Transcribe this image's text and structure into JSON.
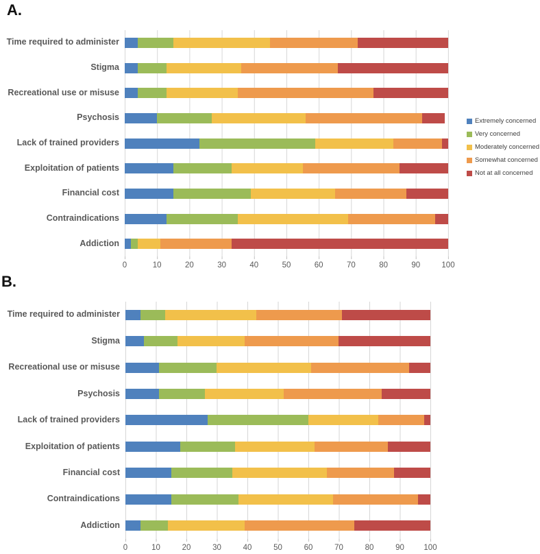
{
  "panels": [
    {
      "label": "A."
    },
    {
      "label": "B."
    }
  ],
  "palette": {
    "blue": "#4F81BD",
    "green": "#9BBB59",
    "yellow": "#F2C04A",
    "orange": "#EE9A4D",
    "dark_red": "#BE4B48"
  },
  "grid_color": "#d6d6d6",
  "axis_text_color": "#595959",
  "legend": {
    "position": "right-of-panel-A",
    "items": [
      {
        "label": "Extremely concerned",
        "color": "#4F81BD"
      },
      {
        "label": "Very concerned",
        "color": "#9BBB59"
      },
      {
        "label": "Moderately concerned",
        "color": "#F2C04A"
      },
      {
        "label": "Somewhat concerned",
        "color": "#EE9A4D"
      },
      {
        "label": "Not at all concerned",
        "color": "#BE4B48"
      }
    ]
  },
  "chart_data": [
    {
      "id": "A",
      "type": "bar",
      "subtype": "horizontal-stacked",
      "title": "",
      "xlabel": "",
      "ylabel": "",
      "xlim": [
        0,
        100
      ],
      "xticks": [
        0,
        10,
        20,
        30,
        40,
        50,
        60,
        70,
        80,
        90,
        100
      ],
      "grid": true,
      "legend_position": "right",
      "categories": [
        "Time required to administer",
        "Stigma",
        "Recreational use or misuse",
        "Psychosis",
        "Lack of trained providers",
        "Exploitation of patients",
        "Financial cost",
        "Contraindications",
        "Addiction"
      ],
      "series": [
        {
          "name": "Extremely concerned",
          "color": "#4F81BD",
          "values": [
            4,
            4,
            4,
            10,
            23,
            15,
            15,
            13,
            2
          ]
        },
        {
          "name": "Very concerned",
          "color": "#9BBB59",
          "values": [
            11,
            9,
            9,
            17,
            36,
            18,
            24,
            22,
            2
          ]
        },
        {
          "name": "Moderately concerned",
          "color": "#F2C04A",
          "values": [
            30,
            23,
            22,
            29,
            24,
            22,
            26,
            34,
            7
          ]
        },
        {
          "name": "Somewhat concerned",
          "color": "#EE9A4D",
          "values": [
            27,
            30,
            42,
            36,
            15,
            30,
            22,
            27,
            22
          ]
        },
        {
          "name": "Not at all concerned",
          "color": "#BE4B48",
          "values": [
            28,
            34,
            23,
            7,
            2,
            15,
            13,
            4,
            67
          ]
        }
      ]
    },
    {
      "id": "B",
      "type": "bar",
      "subtype": "horizontal-stacked",
      "title": "",
      "xlabel": "",
      "ylabel": "",
      "xlim": [
        0,
        100
      ],
      "xticks": [
        0,
        10,
        20,
        30,
        40,
        50,
        60,
        70,
        80,
        90,
        100
      ],
      "grid": true,
      "legend_position": "none",
      "categories": [
        "Time required to administer",
        "Stigma",
        "Recreational use or misuse",
        "Psychosis",
        "Lack of trained providers",
        "Exploitation of patients",
        "Financial cost",
        "Contraindications",
        "Addiction"
      ],
      "series": [
        {
          "name": "Extremely concerned",
          "color": "#4F81BD",
          "values": [
            5,
            6,
            11,
            11,
            27,
            18,
            15,
            15,
            5
          ]
        },
        {
          "name": "Very concerned",
          "color": "#9BBB59",
          "values": [
            8,
            11,
            19,
            15,
            33,
            18,
            20,
            22,
            9
          ]
        },
        {
          "name": "Moderately concerned",
          "color": "#F2C04A",
          "values": [
            30,
            22,
            31,
            26,
            23,
            26,
            31,
            31,
            25
          ]
        },
        {
          "name": "Somewhat concerned",
          "color": "#EE9A4D",
          "values": [
            28,
            31,
            32,
            32,
            15,
            24,
            22,
            28,
            36
          ]
        },
        {
          "name": "Not at all concerned",
          "color": "#BE4B48",
          "values": [
            29,
            30,
            7,
            16,
            2,
            14,
            12,
            4,
            25
          ]
        }
      ]
    }
  ]
}
